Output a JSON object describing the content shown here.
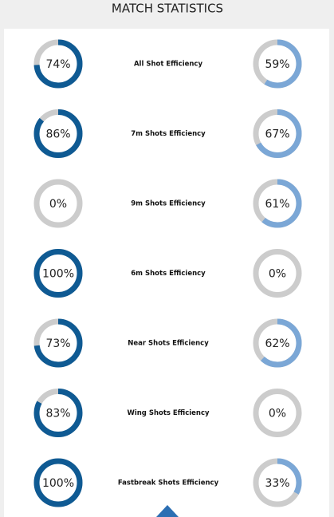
{
  "header": {
    "title": "MATCH STATISTICS"
  },
  "colors": {
    "home": "#0f5a93",
    "away": "#7ba7d6",
    "track": "#cccccc"
  },
  "rows": [
    {
      "label": "All Shot Efficiency",
      "home": {
        "value": 74,
        "label": "74%"
      },
      "away": {
        "value": 59,
        "label": "59%"
      }
    },
    {
      "label": "7m Shots Efficiency",
      "home": {
        "value": 86,
        "label": "86%"
      },
      "away": {
        "value": 67,
        "label": "67%"
      }
    },
    {
      "label": "9m Shots Efficiency",
      "home": {
        "value": 0,
        "label": "0%"
      },
      "away": {
        "value": 61,
        "label": "61%"
      }
    },
    {
      "label": "6m Shots Efficiency",
      "home": {
        "value": 100,
        "label": "100%"
      },
      "away": {
        "value": 0,
        "label": "0%"
      }
    },
    {
      "label": "Near Shots Efficiency",
      "home": {
        "value": 73,
        "label": "73%"
      },
      "away": {
        "value": 62,
        "label": "62%"
      }
    },
    {
      "label": "Wing Shots Efficiency",
      "home": {
        "value": 83,
        "label": "83%"
      },
      "away": {
        "value": 0,
        "label": "0%"
      }
    },
    {
      "label": "Fastbreak Shots Efficiency",
      "home": {
        "value": 100,
        "label": "100%"
      },
      "away": {
        "value": 33,
        "label": "33%"
      }
    }
  ]
}
